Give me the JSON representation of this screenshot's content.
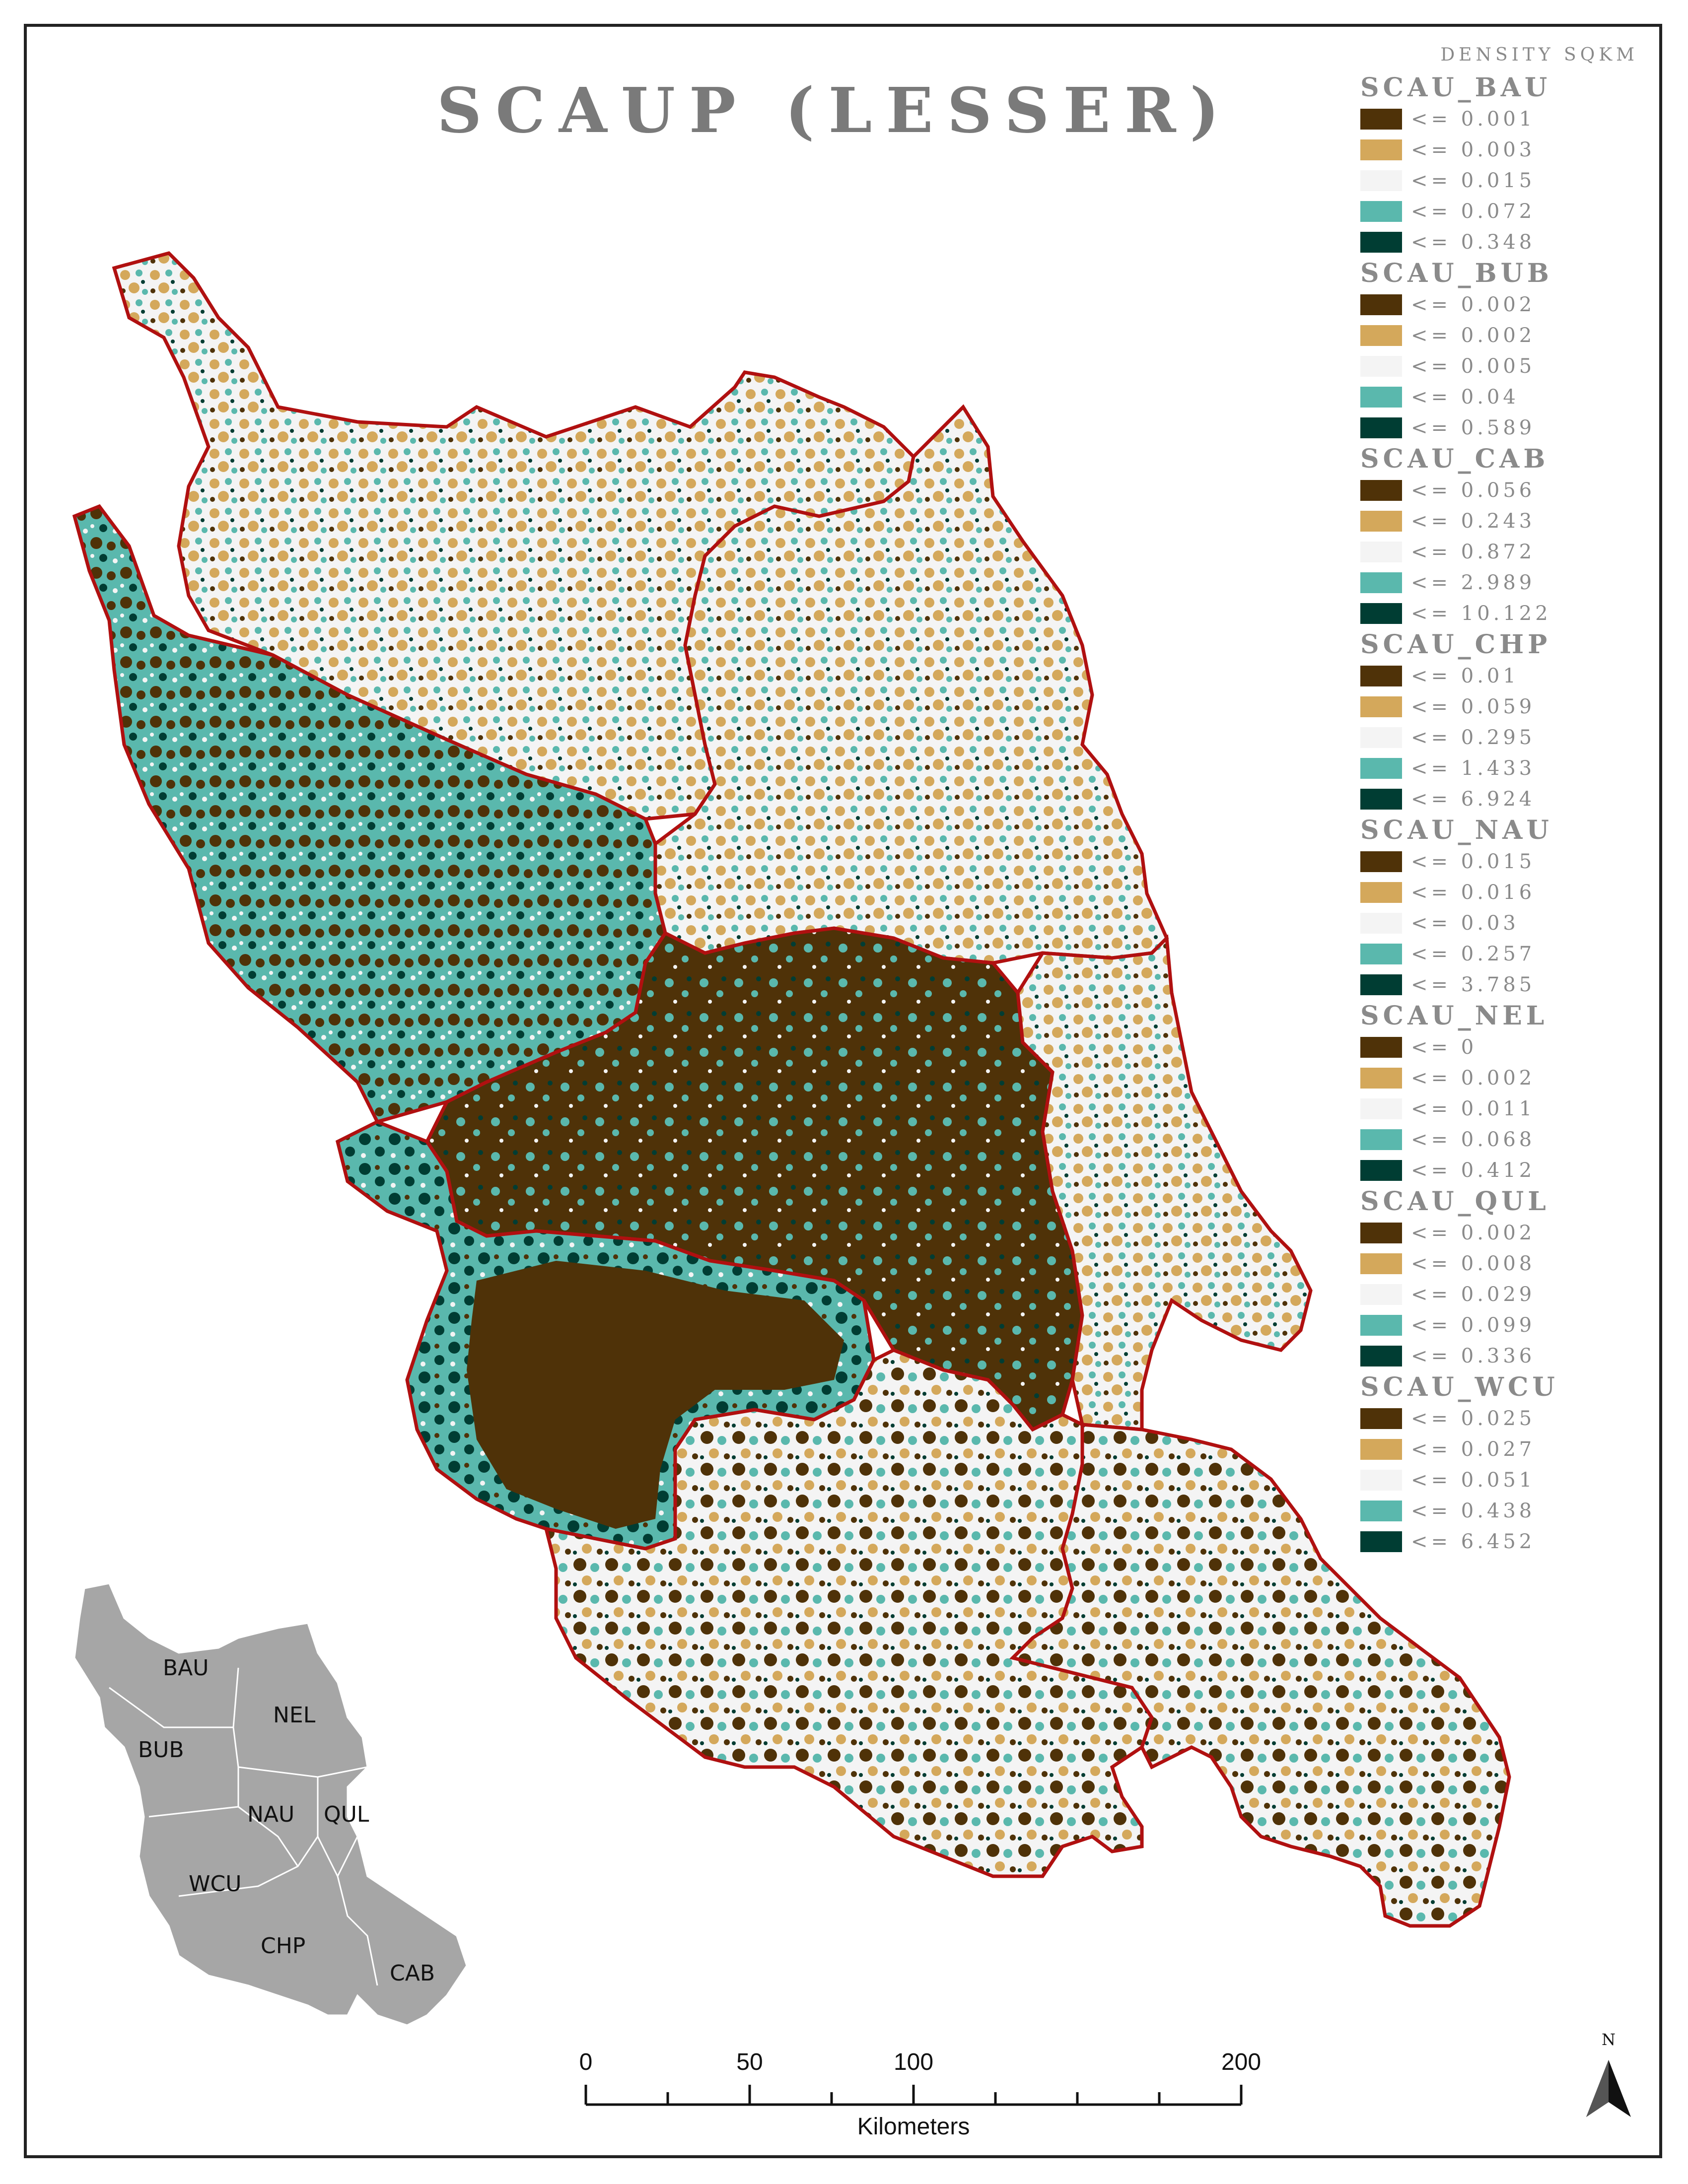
{
  "title": "SCAUP (LESSER)",
  "legend": {
    "title": "DENSITY SQKM",
    "groups": [
      {
        "name": "SCAU_BAU",
        "classes": [
          "<= 0.001",
          "<= 0.003",
          "<= 0.015",
          "<= 0.072",
          "<= 0.348"
        ]
      },
      {
        "name": "SCAU_BUB",
        "classes": [
          "<= 0.002",
          "<= 0.002",
          "<= 0.005",
          "<= 0.04",
          "<= 0.589"
        ]
      },
      {
        "name": "SCAU_CAB",
        "classes": [
          "<= 0.056",
          "<= 0.243",
          "<= 0.872",
          "<= 2.989",
          "<= 10.122"
        ]
      },
      {
        "name": "SCAU_CHP",
        "classes": [
          "<= 0.01",
          "<= 0.059",
          "<= 0.295",
          "<= 1.433",
          "<= 6.924"
        ]
      },
      {
        "name": "SCAU_NAU",
        "classes": [
          "<= 0.015",
          "<= 0.016",
          "<= 0.03",
          "<= 0.257",
          "<= 3.785"
        ]
      },
      {
        "name": "SCAU_NEL",
        "classes": [
          "<= 0",
          "<= 0.002",
          "<= 0.011",
          "<= 0.068",
          "<= 0.412"
        ]
      },
      {
        "name": "SCAU_QUL",
        "classes": [
          "<= 0.002",
          "<= 0.008",
          "<= 0.029",
          "<= 0.099",
          "<= 0.336"
        ]
      },
      {
        "name": "SCAU_WCU",
        "classes": [
          "<= 0.025",
          "<= 0.027",
          "<= 0.051",
          "<= 0.438",
          "<= 6.452"
        ]
      }
    ]
  },
  "class_colors": [
    "#4f3208",
    "#d4a85b",
    "#f4f4f4",
    "#5ab8ad",
    "#003d33"
  ],
  "boundary_color": "#b01010",
  "inset": {
    "fill": "#a6a6a6",
    "labels": [
      "BAU",
      "NEL",
      "BUB",
      "NAU",
      "QUL",
      "WCU",
      "CHP",
      "CAB"
    ]
  },
  "scalebar": {
    "ticks": [
      "0",
      "50",
      "100",
      "200"
    ],
    "unit": "Kilometers"
  },
  "north_arrow": {
    "label": "N"
  }
}
